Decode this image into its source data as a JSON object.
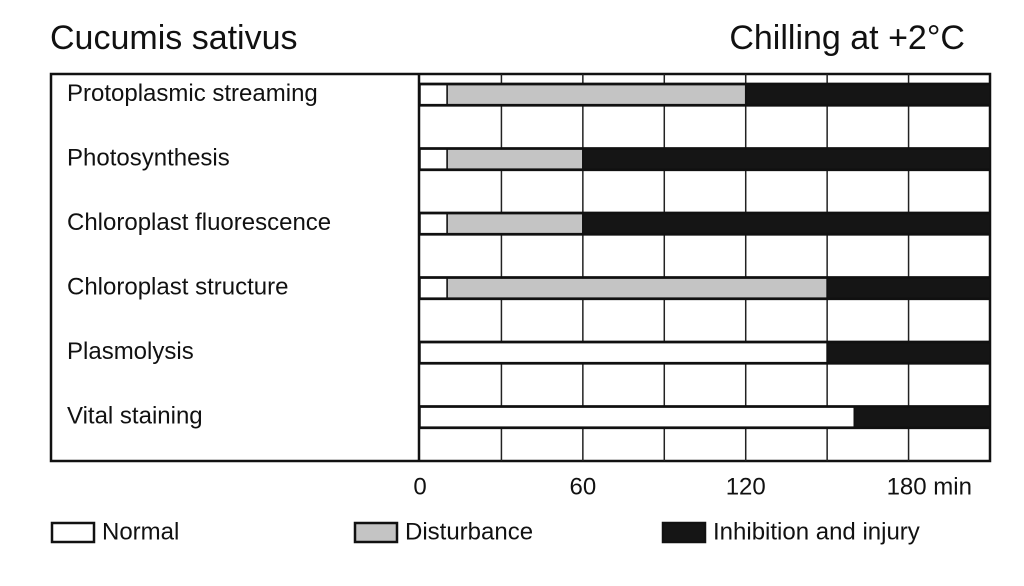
{
  "chart_data": {
    "type": "stacked-barh",
    "title": "Cucumis sativus",
    "subtitle": "Chilling at +2°C",
    "categories": [
      "Protoplasmic streaming",
      "Photosynthesis",
      "Chloroplast fluorescence",
      "Chloroplast structure",
      "Plasmolysis",
      "Vital staining"
    ],
    "series": [
      {
        "name": "Normal",
        "color": "#ffffff",
        "values": [
          10,
          10,
          10,
          10,
          150,
          160
        ]
      },
      {
        "name": "Disturbance",
        "color": "#c4c4c4",
        "values": [
          110,
          50,
          50,
          140,
          0,
          0
        ]
      },
      {
        "name": "Inhibition and injury",
        "color": "#151515",
        "values": [
          90,
          150,
          150,
          60,
          60,
          50
        ]
      }
    ],
    "xlim": [
      0,
      210
    ],
    "xticks": [
      0,
      60,
      120,
      {
        "value": 180,
        "label": "180 min"
      }
    ],
    "xgrid": [
      30,
      60,
      90,
      120,
      150,
      180
    ],
    "legend": "bottom"
  }
}
